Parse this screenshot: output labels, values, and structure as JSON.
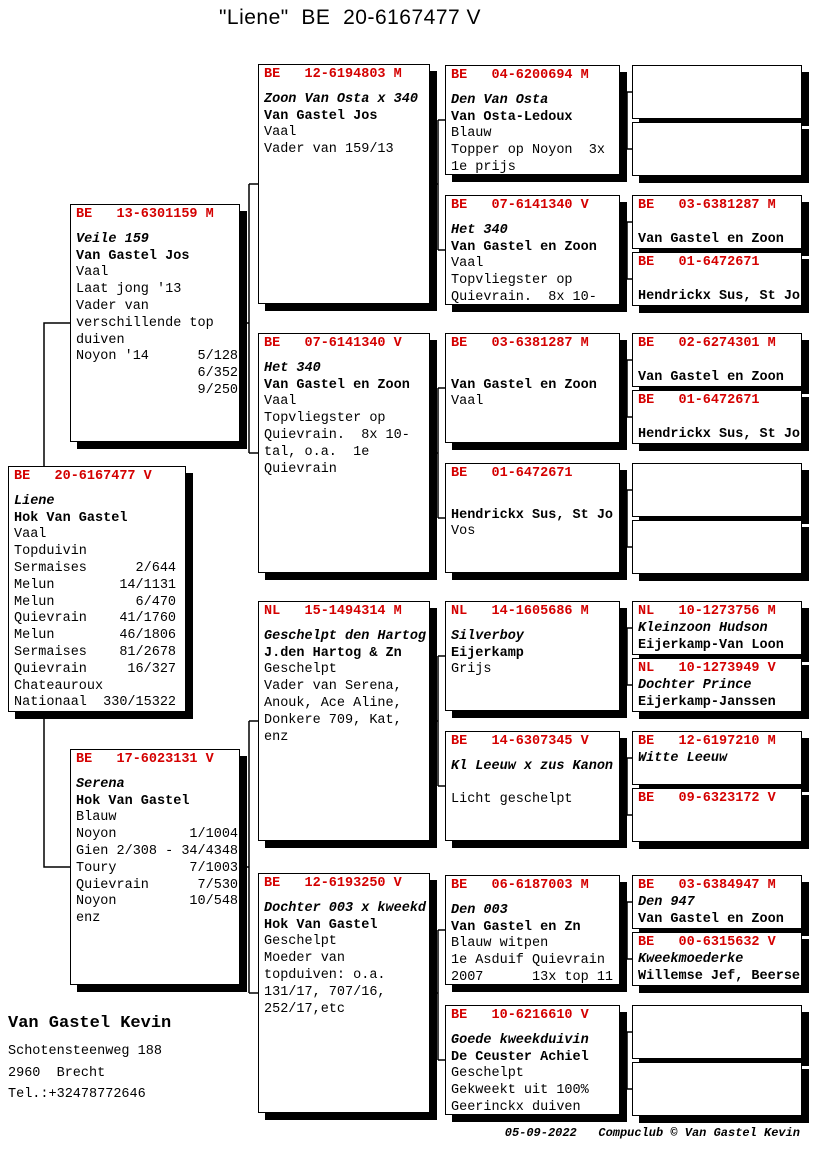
{
  "title": "\"Liene\"  BE  20-6167477 V",
  "boxes": {
    "subject": {
      "ring": "BE   20-6167477 V",
      "lines": [
        {
          "t": "Liene",
          "s": "bi"
        },
        {
          "t": "Hok Van Gastel",
          "s": "b"
        },
        {
          "t": "Vaal"
        },
        {
          "t": "Topduivin"
        },
        {
          "t": "Sermaises      2/644"
        },
        {
          "t": "Melun        14/1131"
        },
        {
          "t": "Melun          6/470"
        },
        {
          "t": "Quievrain    41/1760"
        },
        {
          "t": "Melun        46/1806"
        },
        {
          "t": "Sermaises    81/2678"
        },
        {
          "t": "Quievrain     16/327"
        },
        {
          "t": "Chateauroux"
        },
        {
          "t": "Nationaal  330/15322"
        }
      ]
    },
    "father": {
      "ring": "BE   13-6301159 M",
      "lines": [
        {
          "t": "Veile 159",
          "s": "bi"
        },
        {
          "t": "Van Gastel Jos",
          "s": "b"
        },
        {
          "t": "Vaal"
        },
        {
          "t": "Laat jong '13"
        },
        {
          "t": "Vader van"
        },
        {
          "t": "verschillende top"
        },
        {
          "t": "duiven"
        },
        {
          "t": "Noyon '14      5/128"
        },
        {
          "t": "               6/352"
        },
        {
          "t": "               9/250"
        }
      ]
    },
    "mother": {
      "ring": "BE   17-6023131 V",
      "lines": [
        {
          "t": "Serena",
          "s": "bi"
        },
        {
          "t": "Hok Van Gastel",
          "s": "b"
        },
        {
          "t": "Blauw"
        },
        {
          "t": "Noyon         1/1004"
        },
        {
          "t": "Gien 2/308 - 34/4348"
        },
        {
          "t": "Toury         7/1003"
        },
        {
          "t": "Quievrain      7/530"
        },
        {
          "t": "Noyon         10/548"
        },
        {
          "t": "enz"
        }
      ]
    },
    "grandparents": [
      {
        "ring": "BE   12-6194803 M",
        "lines": [
          {
            "t": "Zoon Van Osta x 340",
            "s": "bi"
          },
          {
            "t": "Van Gastel Jos",
            "s": "b"
          },
          {
            "t": "Vaal"
          },
          {
            "t": "Vader van 159/13"
          }
        ]
      },
      {
        "ring": "BE   07-6141340 V",
        "lines": [
          {
            "t": "Het 340",
            "s": "bi"
          },
          {
            "t": "Van Gastel en Zoon",
            "s": "b"
          },
          {
            "t": "Vaal"
          },
          {
            "t": "Topvliegster op"
          },
          {
            "t": "Quievrain.  8x 10-"
          },
          {
            "t": "tal, o.a.  1e"
          },
          {
            "t": "Quievrain"
          }
        ]
      },
      {
        "ring": "NL   15-1494314 M",
        "lines": [
          {
            "t": "Geschelpt den Hartog",
            "s": "bi"
          },
          {
            "t": "J.den Hartog & Zn",
            "s": "b"
          },
          {
            "t": "Geschelpt"
          },
          {
            "t": "Vader van Serena,"
          },
          {
            "t": "Anouk, Ace Aline,"
          },
          {
            "t": "Donkere 709, Kat,"
          },
          {
            "t": "enz"
          }
        ]
      },
      {
        "ring": "BE   12-6193250 V",
        "lines": [
          {
            "t": "Dochter 003 x kweekd",
            "s": "bi"
          },
          {
            "t": "Hok Van Gastel",
            "s": "b"
          },
          {
            "t": "Geschelpt"
          },
          {
            "t": "Moeder van"
          },
          {
            "t": "topduiven: o.a."
          },
          {
            "t": "131/17, 707/16,"
          },
          {
            "t": "252/17,etc"
          }
        ]
      }
    ],
    "great_grandparents": [
      {
        "ring": "BE   04-6200694 M",
        "lines": [
          {
            "t": "Den Van Osta",
            "s": "bi"
          },
          {
            "t": "Van Osta-Ledoux",
            "s": "b"
          },
          {
            "t": "Blauw"
          },
          {
            "t": "Topper op Noyon  3x"
          },
          {
            "t": "1e prijs"
          }
        ]
      },
      {
        "ring": "BE   07-6141340 V",
        "lines": [
          {
            "t": "Het 340",
            "s": "bi"
          },
          {
            "t": "Van Gastel en Zoon",
            "s": "b"
          },
          {
            "t": "Vaal"
          },
          {
            "t": "Topvliegster op"
          },
          {
            "t": "Quievrain.  8x 10-"
          }
        ]
      },
      {
        "ring": "BE   03-6381287 M",
        "lines": [
          {
            "t": ""
          },
          {
            "t": "Van Gastel en Zoon",
            "s": "b"
          },
          {
            "t": "Vaal"
          }
        ]
      },
      {
        "ring": "BE   01-6472671",
        "lines": [
          {
            "t": ""
          },
          {
            "t": "Hendrickx Sus, St Jo",
            "s": "b"
          },
          {
            "t": "Vos"
          }
        ]
      },
      {
        "ring": "NL   14-1605686 M",
        "lines": [
          {
            "t": "Silverboy",
            "s": "bi"
          },
          {
            "t": "Eijerkamp",
            "s": "b"
          },
          {
            "t": "Grijs"
          }
        ]
      },
      {
        "ring": "BE   14-6307345 V",
        "lines": [
          {
            "t": "Kl Leeuw x zus Kanon",
            "s": "bi"
          },
          {
            "t": ""
          },
          {
            "t": "Licht geschelpt"
          }
        ]
      },
      {
        "ring": "BE   06-6187003 M",
        "lines": [
          {
            "t": "Den 003",
            "s": "bi"
          },
          {
            "t": "Van Gastel en Zn",
            "s": "b"
          },
          {
            "t": "Blauw witpen"
          },
          {
            "t": "1e Asduif Quievrain"
          },
          {
            "t": "2007      13x top 11"
          }
        ]
      },
      {
        "ring": "BE   10-6216610 V",
        "lines": [
          {
            "t": "Goede kweekduivin",
            "s": "bi"
          },
          {
            "t": "De Ceuster Achiel",
            "s": "b"
          },
          {
            "t": "Geschelpt"
          },
          {
            "t": "Gekweekt uit 100%"
          },
          {
            "t": "Geerinckx duiven"
          }
        ]
      }
    ],
    "gg_grandparents": [
      {},
      {},
      {
        "ring": "BE   03-6381287 M",
        "lines": [
          {
            "t": ""
          },
          {
            "t": "Van Gastel en Zoon",
            "s": "b"
          }
        ]
      },
      {
        "ring": "BE   01-6472671",
        "lines": [
          {
            "t": ""
          },
          {
            "t": "Hendrickx Sus, St Jo",
            "s": "b"
          }
        ]
      },
      {
        "ring": "BE   02-6274301 M",
        "lines": [
          {
            "t": ""
          },
          {
            "t": "Van Gastel en Zoon",
            "s": "b"
          }
        ]
      },
      {
        "ring": "BE   01-6472671",
        "lines": [
          {
            "t": ""
          },
          {
            "t": "Hendrickx Sus, St Jo",
            "s": "b"
          }
        ]
      },
      {},
      {},
      {
        "ring": "NL   10-1273756 M",
        "lines": [
          {
            "t": "Kleinzoon Hudson",
            "s": "bi"
          },
          {
            "t": "Eijerkamp-Van Loon",
            "s": "b"
          }
        ]
      },
      {
        "ring": "NL   10-1273949 V",
        "lines": [
          {
            "t": "Dochter Prince",
            "s": "bi"
          },
          {
            "t": "Eijerkamp-Janssen",
            "s": "b"
          }
        ]
      },
      {
        "ring": "BE   12-6197210 M",
        "lines": [
          {
            "t": "Witte Leeuw",
            "s": "bi"
          }
        ]
      },
      {
        "ring": "BE   09-6323172 V",
        "lines": []
      },
      {
        "ring": "BE   03-6384947 M",
        "lines": [
          {
            "t": "Den 947",
            "s": "bi"
          },
          {
            "t": "Van Gastel en Zoon",
            "s": "b"
          }
        ]
      },
      {
        "ring": "BE   00-6315632 V",
        "lines": [
          {
            "t": "Kweekmoederke",
            "s": "bi"
          },
          {
            "t": "Willemse Jef, Beerse",
            "s": "b"
          }
        ]
      },
      {},
      {}
    ]
  },
  "owner": {
    "name": "Van Gastel Kevin",
    "address1": "Schotensteenweg 188",
    "address2": "2960  Brecht",
    "phone": "Tel.:+32478772646"
  },
  "footer": {
    "credit": "05-09-2022   Compuclub © Van Gastel Kevin"
  }
}
